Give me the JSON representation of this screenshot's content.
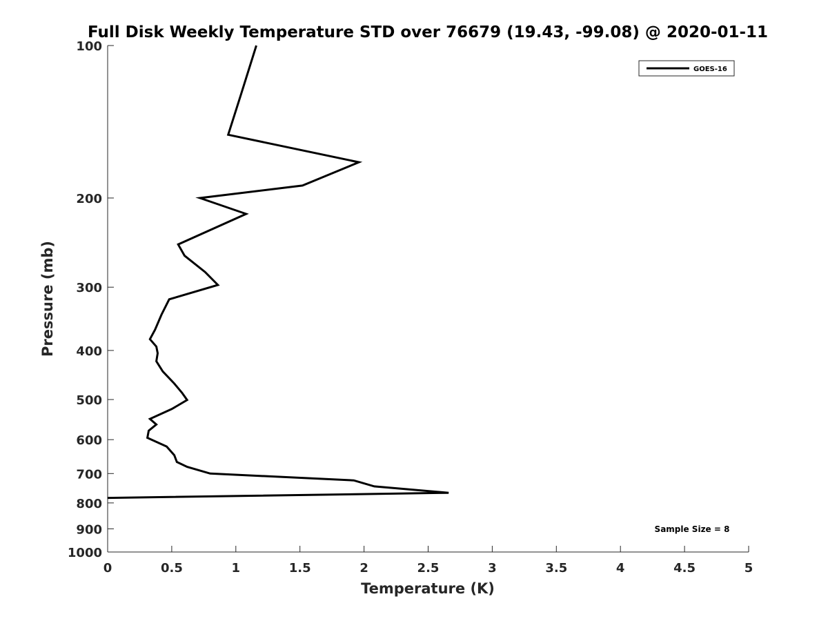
{
  "chart_data": {
    "type": "line",
    "title": "Full Disk Weekly Temperature STD over 76679 (19.43, -99.08) @ 2020-01-11",
    "xlabel": "Temperature (K)",
    "ylabel": "Pressure (mb)",
    "xlim": [
      0,
      5
    ],
    "ylim": [
      100,
      1000
    ],
    "yscale": "log",
    "y_reversed": true,
    "grid": false,
    "x_ticks": [
      0,
      0.5,
      1,
      1.5,
      2,
      2.5,
      3,
      3.5,
      4,
      4.5,
      5
    ],
    "x_tick_labels": [
      "0",
      "0.5",
      "1",
      "1.5",
      "2",
      "2.5",
      "3",
      "3.5",
      "4",
      "4.5",
      "5"
    ],
    "y_ticks": [
      100,
      200,
      300,
      400,
      500,
      600,
      700,
      800,
      900,
      1000
    ],
    "y_tick_labels": [
      "100",
      "200",
      "300",
      "400",
      "500",
      "600",
      "700",
      "800",
      "900",
      "1000"
    ],
    "legend": {
      "placement": "top-right",
      "entries": [
        "GOES-16"
      ]
    },
    "annotation": "Sample Size = 8",
    "series": [
      {
        "name": "GOES-16",
        "color": "#000000",
        "points": [
          [
            1.16,
            100
          ],
          [
            1.04,
            125
          ],
          [
            0.94,
            150
          ],
          [
            1.96,
            170
          ],
          [
            1.52,
            189
          ],
          [
            0.72,
            200
          ],
          [
            1.08,
            215
          ],
          [
            0.55,
            247
          ],
          [
            0.6,
            260
          ],
          [
            0.76,
            280
          ],
          [
            0.86,
            297
          ],
          [
            0.48,
            317
          ],
          [
            0.42,
            340
          ],
          [
            0.37,
            364
          ],
          [
            0.33,
            380
          ],
          [
            0.38,
            393
          ],
          [
            0.39,
            405
          ],
          [
            0.38,
            420
          ],
          [
            0.43,
            440
          ],
          [
            0.52,
            465
          ],
          [
            0.58,
            485
          ],
          [
            0.62,
            501
          ],
          [
            0.5,
            522
          ],
          [
            0.33,
            546
          ],
          [
            0.38,
            560
          ],
          [
            0.32,
            576
          ],
          [
            0.31,
            595
          ],
          [
            0.46,
            619
          ],
          [
            0.52,
            644
          ],
          [
            0.54,
            664
          ],
          [
            0.62,
            679
          ],
          [
            0.8,
            700
          ],
          [
            1.92,
            722
          ],
          [
            2.08,
            742
          ],
          [
            2.66,
            764
          ],
          [
            0.0,
            782
          ]
        ]
      }
    ]
  }
}
